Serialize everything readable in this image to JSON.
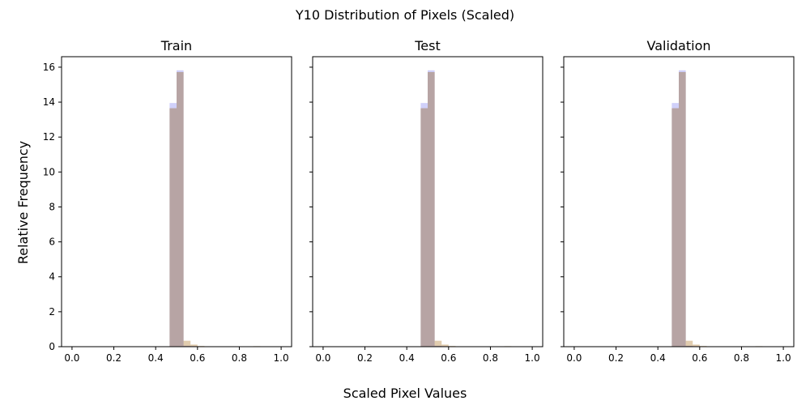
{
  "chart_data": {
    "type": "bar",
    "title": "Y10 Distribution of Pixels (Scaled)",
    "xlabel": "Scaled Pixel Values",
    "ylabel": "Relative Frequency",
    "xlim": [
      -0.05,
      1.05
    ],
    "ylim": [
      0,
      16.6
    ],
    "xticks": [
      "0.0",
      "0.2",
      "0.4",
      "0.6",
      "0.8",
      "1.0"
    ],
    "xtick_values": [
      0.0,
      0.2,
      0.4,
      0.6,
      0.8,
      1.0
    ],
    "yticks": [
      "0",
      "2",
      "4",
      "6",
      "8",
      "10",
      "12",
      "14",
      "16"
    ],
    "ytick_values": [
      0,
      2,
      4,
      6,
      8,
      10,
      12,
      14,
      16
    ],
    "bin_edges": [
      0.0,
      0.0333,
      0.0667,
      0.1,
      0.1333,
      0.1667,
      0.2,
      0.2333,
      0.2667,
      0.3,
      0.3333,
      0.3667,
      0.4,
      0.4333,
      0.4667,
      0.5,
      0.5333,
      0.5667,
      0.6,
      0.6333,
      0.6667,
      0.7,
      0.7333,
      0.7667,
      0.8,
      0.8333,
      0.8667,
      0.9,
      0.9333,
      0.9667,
      1.0
    ],
    "series_colors": [
      "#a9a9f5",
      "#c9a36b",
      "#a5969e"
    ],
    "panels": [
      {
        "title": "Train",
        "series": [
          {
            "values": [
              0,
              0,
              0,
              0,
              0,
              0,
              0,
              0,
              0,
              0,
              0,
              0,
              0,
              0,
              13.95,
              15.82,
              0.05,
              0.03,
              0,
              0,
              0,
              0,
              0,
              0,
              0,
              0,
              0.02,
              0,
              0,
              0
            ]
          },
          {
            "values": [
              0,
              0,
              0,
              0,
              0,
              0,
              0,
              0,
              0,
              0,
              0,
              0,
              0,
              0,
              13.65,
              15.72,
              0.34,
              0.12,
              0.04,
              0,
              0,
              0,
              0,
              0,
              0,
              0,
              0.03,
              0,
              0,
              0
            ]
          },
          {
            "values": [
              0,
              0,
              0,
              0,
              0,
              0,
              0,
              0,
              0,
              0,
              0,
              0,
              0,
              0,
              13.65,
              15.72,
              0.05,
              0.03,
              0,
              0,
              0,
              0,
              0,
              0,
              0,
              0,
              0.02,
              0,
              0,
              0
            ]
          }
        ]
      },
      {
        "title": "Test",
        "series": [
          {
            "values": [
              0,
              0,
              0,
              0,
              0,
              0,
              0,
              0,
              0,
              0,
              0,
              0,
              0,
              0,
              13.95,
              15.82,
              0.05,
              0.03,
              0,
              0,
              0,
              0,
              0,
              0,
              0,
              0,
              0.02,
              0,
              0,
              0
            ]
          },
          {
            "values": [
              0,
              0,
              0,
              0,
              0,
              0,
              0,
              0,
              0,
              0,
              0,
              0,
              0,
              0,
              13.65,
              15.72,
              0.34,
              0.12,
              0.04,
              0,
              0,
              0,
              0,
              0,
              0,
              0,
              0.03,
              0,
              0,
              0
            ]
          },
          {
            "values": [
              0,
              0,
              0,
              0,
              0,
              0,
              0,
              0,
              0,
              0,
              0,
              0,
              0,
              0,
              13.65,
              15.72,
              0.05,
              0.03,
              0,
              0,
              0,
              0,
              0,
              0,
              0,
              0,
              0.02,
              0,
              0,
              0
            ]
          }
        ]
      },
      {
        "title": "Validation",
        "series": [
          {
            "values": [
              0,
              0,
              0,
              0,
              0,
              0,
              0,
              0,
              0,
              0,
              0,
              0,
              0,
              0,
              13.95,
              15.82,
              0.05,
              0.03,
              0,
              0,
              0,
              0,
              0,
              0,
              0,
              0,
              0.02,
              0,
              0,
              0
            ]
          },
          {
            "values": [
              0,
              0,
              0,
              0,
              0,
              0,
              0,
              0,
              0,
              0,
              0,
              0,
              0,
              0,
              13.65,
              15.72,
              0.34,
              0.12,
              0.04,
              0,
              0,
              0,
              0,
              0,
              0,
              0,
              0.03,
              0,
              0,
              0
            ]
          },
          {
            "values": [
              0,
              0,
              0,
              0,
              0,
              0,
              0,
              0,
              0,
              0,
              0,
              0,
              0,
              0,
              13.65,
              15.72,
              0.05,
              0.03,
              0,
              0,
              0,
              0,
              0,
              0,
              0,
              0,
              0.02,
              0,
              0,
              0
            ]
          }
        ]
      }
    ]
  }
}
